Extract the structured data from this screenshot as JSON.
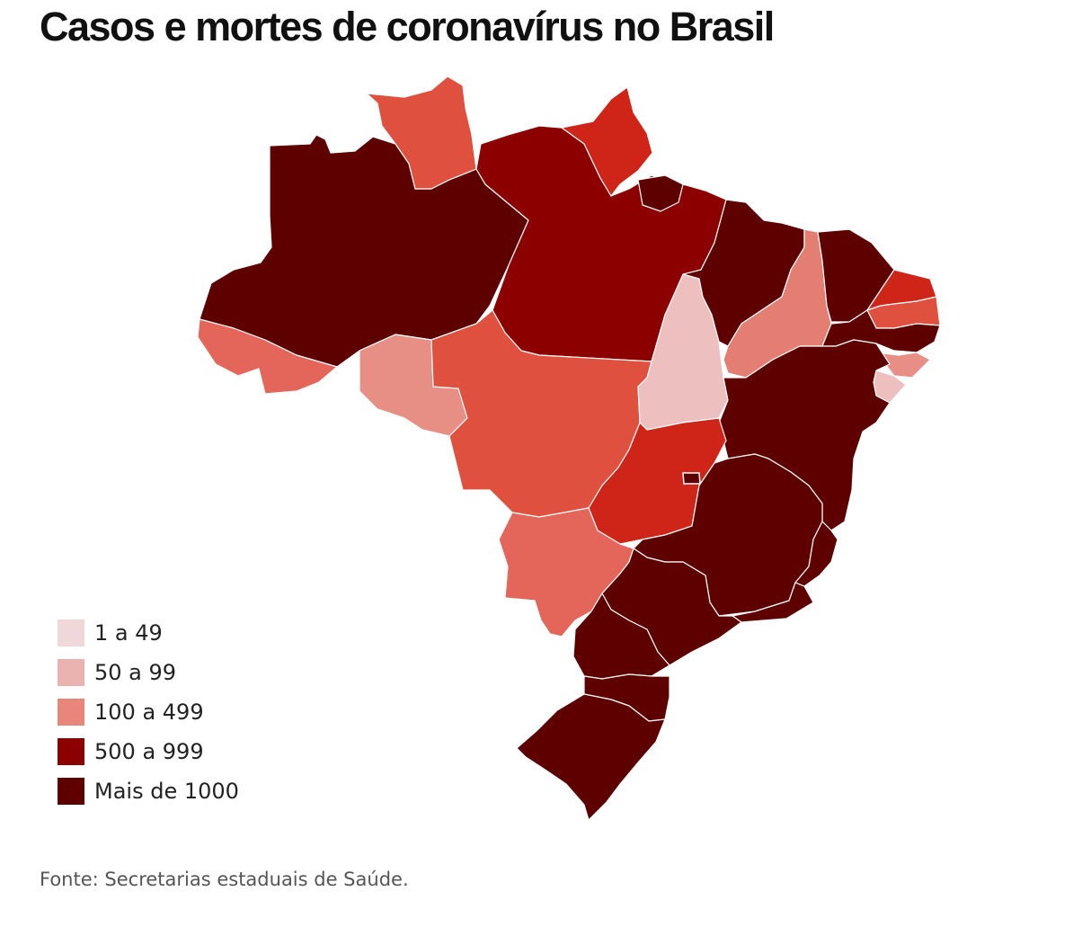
{
  "title": "Casos e mortes de coronavírus no Brasil",
  "source": "Fonte: Secretarias estaduais de Saúde.",
  "legend": [
    {
      "label": "1 a 49",
      "color": "#f0d8da"
    },
    {
      "label": "50 a 99",
      "color": "#ebb3b0"
    },
    {
      "label": "100 a 499",
      "color": "#e8867a"
    },
    {
      "label": "500 a 999",
      "color": "#8c0000"
    },
    {
      "label": "Mais de 1000",
      "color": "#5e0000"
    }
  ],
  "colors": {
    "very_dark": "#5e0000",
    "dark": "#8c0000",
    "red": "#cf2418",
    "orange_red": "#e0503f",
    "salmon": "#e4655a",
    "light_salmon": "#e47e72",
    "pink": "#e88f85",
    "light_pink": "#edc0bf"
  },
  "states": [
    {
      "id": "AM",
      "color": "#5e0000"
    },
    {
      "id": "RR",
      "color": "#e0503f"
    },
    {
      "id": "PA",
      "color": "#8c0000"
    },
    {
      "id": "AP",
      "color": "#cf2418"
    },
    {
      "id": "AC",
      "color": "#e4655a"
    },
    {
      "id": "RO",
      "color": "#e88f85"
    },
    {
      "id": "MT",
      "color": "#e0503f"
    },
    {
      "id": "TO",
      "color": "#edc0bf"
    },
    {
      "id": "MA",
      "color": "#5e0000"
    },
    {
      "id": "PI",
      "color": "#e47e72"
    },
    {
      "id": "CE",
      "color": "#5e0000"
    },
    {
      "id": "RN",
      "color": "#cf2418"
    },
    {
      "id": "PB",
      "color": "#e0503f"
    },
    {
      "id": "PE",
      "color": "#5e0000"
    },
    {
      "id": "AL",
      "color": "#e88f85"
    },
    {
      "id": "SE",
      "color": "#edc0bf"
    },
    {
      "id": "BA",
      "color": "#5e0000"
    },
    {
      "id": "GO",
      "color": "#cf2418"
    },
    {
      "id": "DF",
      "color": "#5e0000"
    },
    {
      "id": "MS",
      "color": "#e4655a"
    },
    {
      "id": "MG",
      "color": "#5e0000"
    },
    {
      "id": "ES",
      "color": "#5e0000"
    },
    {
      "id": "RJ",
      "color": "#5e0000"
    },
    {
      "id": "SP",
      "color": "#5e0000"
    },
    {
      "id": "PR",
      "color": "#5e0000"
    },
    {
      "id": "SC",
      "color": "#5e0000"
    },
    {
      "id": "RS",
      "color": "#5e0000"
    }
  ]
}
